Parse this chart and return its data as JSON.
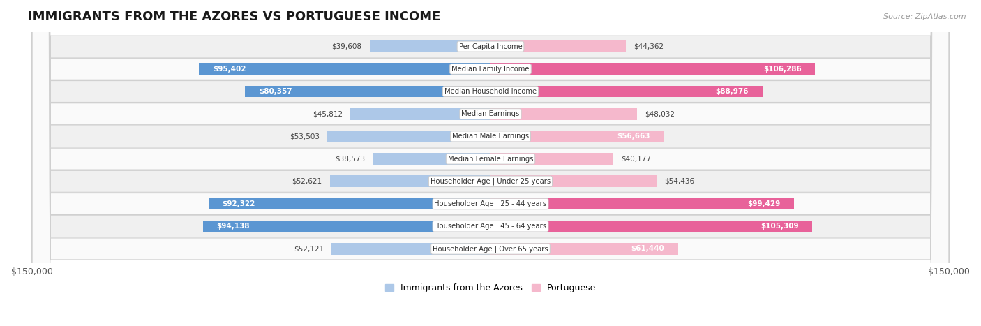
{
  "title": "IMMIGRANTS FROM THE AZORES VS PORTUGUESE INCOME",
  "source": "Source: ZipAtlas.com",
  "categories": [
    "Per Capita Income",
    "Median Family Income",
    "Median Household Income",
    "Median Earnings",
    "Median Male Earnings",
    "Median Female Earnings",
    "Householder Age | Under 25 years",
    "Householder Age | 25 - 44 years",
    "Householder Age | 45 - 64 years",
    "Householder Age | Over 65 years"
  ],
  "azores_values": [
    39608,
    95402,
    80357,
    45812,
    53503,
    38573,
    52621,
    92322,
    94138,
    52121
  ],
  "portuguese_values": [
    44362,
    106286,
    88976,
    48032,
    56663,
    40177,
    54436,
    99429,
    105309,
    61440
  ],
  "azores_color_light": "#adc8e8",
  "azores_color_dark": "#5b96d2",
  "portuguese_color_light": "#f5b8cc",
  "portuguese_color_dark": "#e8629a",
  "high_threshold": 70000,
  "max_value": 150000,
  "background_color": "#ffffff",
  "row_bg_odd": "#f0f0f0",
  "row_bg_even": "#fafafa",
  "label_inside_color": "#ffffff",
  "label_outside_color": "#444444",
  "center_label_color": "#333333",
  "legend_azores": "Immigrants from the Azores",
  "legend_portuguese": "Portuguese"
}
